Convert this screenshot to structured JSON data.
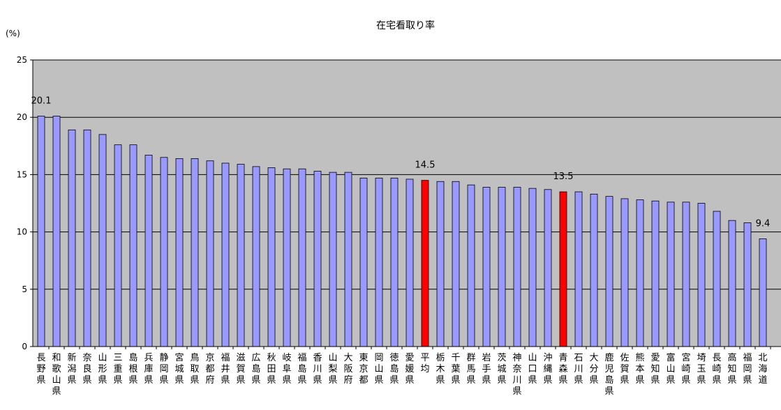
{
  "chart_data": {
    "type": "bar",
    "title": "在宅看取り率",
    "ylabel": "(%)",
    "xlabel": "",
    "ylim": [
      0,
      25
    ],
    "yticks": [
      0,
      5,
      10,
      15,
      20,
      25
    ],
    "grid": true,
    "categories": [
      "長野県",
      "和歌山県",
      "新潟県",
      "奈良県",
      "山形県",
      "三重県",
      "島根県",
      "兵庫県",
      "静岡県",
      "宮城県",
      "鳥取県",
      "京都府",
      "福井県",
      "滋賀県",
      "広島県",
      "秋田県",
      "岐阜県",
      "福島県",
      "香川県",
      "山梨県",
      "大阪府",
      "東京都",
      "岡山県",
      "徳島県",
      "愛媛県",
      "平均",
      "栃木県",
      "千葉県",
      "群馬県",
      "岩手県",
      "茨城県",
      "神奈川県",
      "山口県",
      "沖縄県",
      "青森県",
      "石川県",
      "大分県",
      "鹿児島県",
      "佐賀県",
      "熊本県",
      "愛知県",
      "富山県",
      "宮崎県",
      "埼玉県",
      "長崎県",
      "高知県",
      "福岡県",
      "北海道"
    ],
    "values": [
      20.1,
      20.1,
      18.9,
      18.9,
      18.5,
      17.6,
      17.6,
      16.7,
      16.5,
      16.4,
      16.4,
      16.2,
      16.0,
      15.9,
      15.7,
      15.6,
      15.5,
      15.5,
      15.3,
      15.2,
      15.2,
      14.7,
      14.7,
      14.7,
      14.6,
      14.5,
      14.4,
      14.4,
      14.1,
      13.9,
      13.9,
      13.9,
      13.8,
      13.7,
      13.5,
      13.5,
      13.3,
      13.1,
      12.9,
      12.8,
      12.7,
      12.6,
      12.6,
      12.5,
      11.8,
      11.0,
      10.8,
      9.4
    ],
    "highlight": [
      "平均",
      "青森県"
    ],
    "data_labels": [
      {
        "category": "長野県",
        "text": "20.1"
      },
      {
        "category": "平均",
        "text": "14.5"
      },
      {
        "category": "青森県",
        "text": "13.5"
      },
      {
        "category": "北海道",
        "text": "9.4"
      }
    ],
    "colors": {
      "bar": "#9999ff",
      "highlight": "#ff0000",
      "plot_bg": "#c0c0c0",
      "edge": "#000000"
    }
  }
}
